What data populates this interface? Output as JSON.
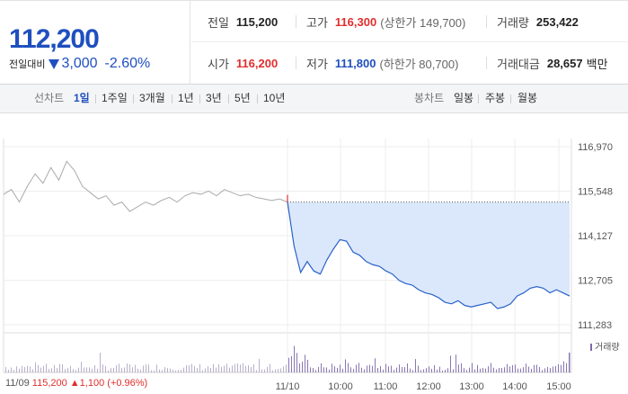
{
  "quote": {
    "price": "112,200",
    "change_label": "전일대비",
    "change_abs": "3,000",
    "change_pct": "-2.60%",
    "prev_close": {
      "label": "전일",
      "value": "115,200"
    },
    "high": {
      "label": "고가",
      "value": "116,300",
      "limit_label": "(상한가 149,700)"
    },
    "volume": {
      "label": "거래량",
      "value": "253,422"
    },
    "open": {
      "label": "시가",
      "value": "116,200"
    },
    "low": {
      "label": "저가",
      "value": "111,800",
      "limit_label": "(하한가 80,700)"
    },
    "trade_value": {
      "label": "거래대금",
      "value": "28,657",
      "unit": "백만"
    },
    "colors": {
      "up": "#e12d2d",
      "down": "#1f4fbf"
    }
  },
  "tabs": {
    "line_label": "선차트",
    "line_tabs": [
      "1일",
      "1주일",
      "3개월",
      "1년",
      "3년",
      "5년",
      "10년"
    ],
    "active": "1일",
    "candle_label": "봉차트",
    "candle_tabs": [
      "일봉",
      "주봉",
      "월봉"
    ]
  },
  "chart_data": {
    "type": "line",
    "y_ticks": [
      "116,970",
      "115,548",
      "114,127",
      "112,705",
      "111,283"
    ],
    "ylim": [
      111283,
      116970
    ],
    "x_ticks": [
      "11/10",
      "10:00",
      "11:00",
      "12:00",
      "13:00",
      "14:00",
      "15:00"
    ],
    "prev_day_label": "11/09",
    "prev_day_close": "115,200",
    "prev_day_change": "▲1,100",
    "prev_day_pct": "(+0.96%)",
    "reference_line": 115200,
    "series": [
      {
        "values": [
          115450,
          115600,
          115200,
          115700,
          116100,
          115800,
          116300,
          115900,
          116500,
          116200,
          115700,
          115500,
          115300,
          115400,
          115100,
          115200,
          114900,
          115050,
          115200,
          115100,
          115250,
          115350,
          115200,
          115400,
          115500,
          115450,
          115550,
          115400,
          115600,
          115500,
          115400,
          115450,
          115350,
          115300,
          115250,
          115300,
          115200
        ]
      },
      {
        "values": [
          115200,
          113800,
          112950,
          113300,
          113000,
          112900,
          113350,
          113700,
          114000,
          113950,
          113600,
          113500,
          113300,
          113200,
          113150,
          113000,
          112900,
          112700,
          112600,
          112550,
          112400,
          112300,
          112250,
          112150,
          112000,
          111950,
          112050,
          111900,
          111850,
          111900,
          111950,
          112000,
          111800,
          111850,
          111950,
          112200,
          112300,
          112450,
          112500,
          112450,
          112300,
          112400,
          112300,
          112200
        ]
      }
    ],
    "volume_label": "거래량"
  }
}
